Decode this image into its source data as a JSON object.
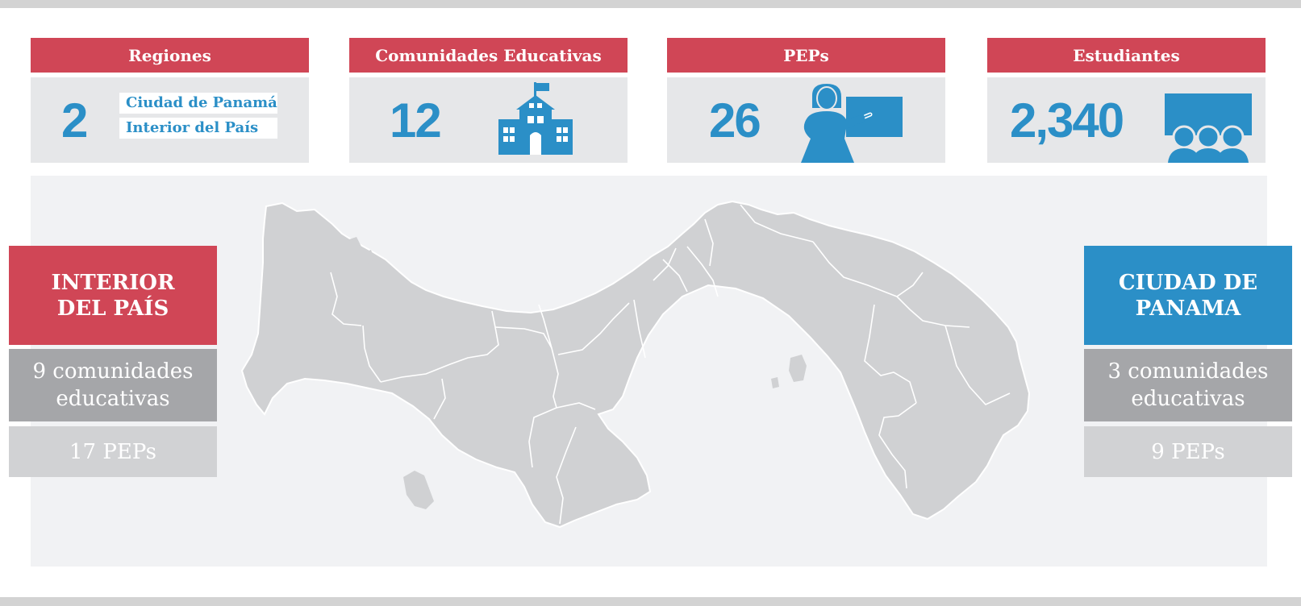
{
  "stats": {
    "regions": {
      "label": "Regiones",
      "value": "2",
      "items": [
        "Ciudad de Panamá",
        "Interior del País"
      ]
    },
    "communities": {
      "label": "Comunidades Educativas",
      "value": "12",
      "icon": "school-icon"
    },
    "peps": {
      "label": "PEPs",
      "value": "26",
      "icon": "teacher-icon"
    },
    "students": {
      "label": "Estudiantes",
      "value": "2,340",
      "icon": "students-icon"
    }
  },
  "interior": {
    "title": "INTERIOR DEL PAÍS",
    "communities": "9 comunidades educativas",
    "peps": "17 PEPs",
    "color": "#d04656"
  },
  "city": {
    "title": "CIUDAD DE PANAMA",
    "communities": "3 comunidades educativas",
    "peps": "9 PEPs",
    "color": "#2b8fc7"
  },
  "colors": {
    "header_red": "#d04656",
    "accent_blue": "#2b8fc7",
    "card_bg": "#e6e7e9",
    "map_land": "#d0d1d3",
    "map_bg": "#f1f2f4"
  },
  "map": {
    "icon": "panama-map"
  }
}
